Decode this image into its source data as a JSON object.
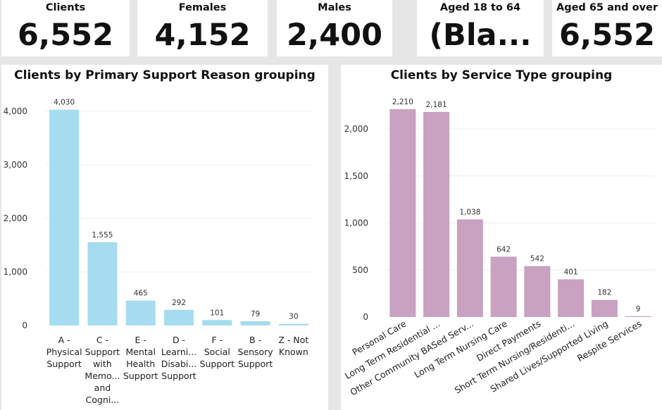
{
  "kpis": [
    {
      "label": "Clients",
      "value": "6,552"
    },
    {
      "label": "Females",
      "value": "4,152"
    },
    {
      "label": "Males",
      "value": "2,400"
    },
    {
      "label": "Aged 18 to 64",
      "value": "(Bla..."
    },
    {
      "label": "Aged 65 and over",
      "value": "6,552"
    }
  ],
  "colors": {
    "support_bar": "#a6dcef",
    "service_bar": "#c8a2c0",
    "gridline": "#ececec"
  },
  "chart_data": [
    {
      "type": "bar",
      "title": "Clients by Primary Support Reason grouping",
      "categories": [
        [
          "A -",
          "Physical",
          "Support"
        ],
        [
          "C -",
          "Support",
          "with",
          "Memo...",
          "and",
          "Cogni..."
        ],
        [
          "E -",
          "Mental",
          "Health",
          "Support"
        ],
        [
          "D -",
          "Learni...",
          "Disabi...",
          "Support"
        ],
        [
          "F -",
          "Social",
          "Support"
        ],
        [
          "B -",
          "Sensory",
          "Support"
        ],
        [
          "Z - Not",
          "Known"
        ]
      ],
      "values": [
        4030,
        1555,
        465,
        292,
        101,
        79,
        30
      ],
      "value_labels": [
        "4,030",
        "1,555",
        "465",
        "292",
        "101",
        "79",
        "30"
      ],
      "yticks": [
        0,
        1000,
        2000,
        3000,
        4000
      ],
      "ytick_labels": [
        "0",
        "1,000",
        "2,000",
        "3,000",
        "4,000"
      ],
      "ylim": [
        0,
        4000
      ],
      "grid": true
    },
    {
      "type": "bar",
      "title": "Clients by Service Type grouping",
      "categories": [
        "Personal Care",
        "Long Term Residential ...",
        "Other Community BASed Serv...",
        "Long Term Nursing Care",
        "Direct Payments",
        "Short Term Nursing/Residenti...",
        "Shared Lives/Supported Living",
        "Respite Services"
      ],
      "values": [
        2210,
        2181,
        1038,
        642,
        542,
        401,
        182,
        9
      ],
      "value_labels": [
        "2,210",
        "2,181",
        "1,038",
        "642",
        "542",
        "401",
        "182",
        "9"
      ],
      "yticks": [
        0,
        500,
        1000,
        1500,
        2000
      ],
      "ytick_labels": [
        "0",
        "500",
        "1,000",
        "1,500",
        "2,000"
      ],
      "ylim": [
        0,
        2000
      ],
      "grid": true
    }
  ]
}
